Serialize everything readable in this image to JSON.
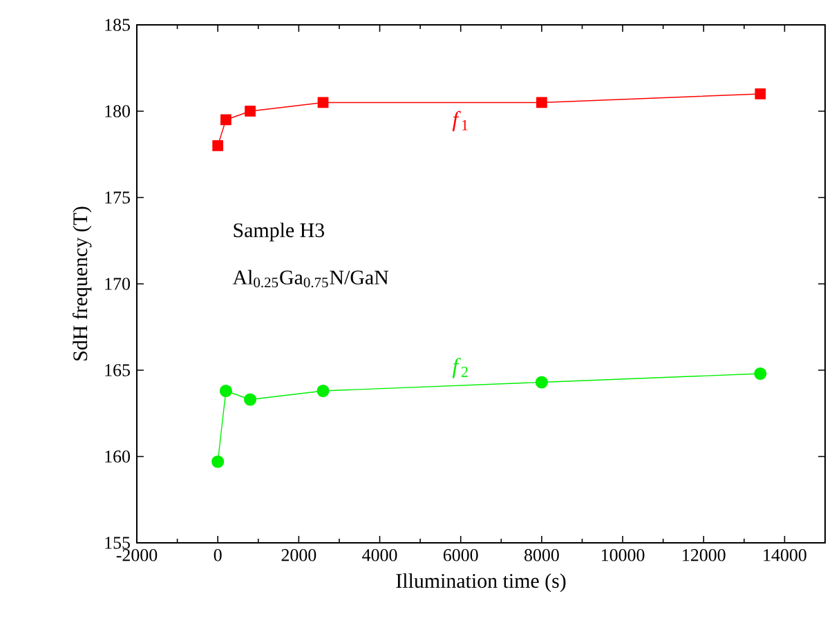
{
  "chart_data": {
    "type": "line",
    "xlabel": "Illumination time (s)",
    "ylabel": "SdH frequency (T)",
    "x": [
      0,
      200,
      800,
      2600,
      8000,
      13400
    ],
    "series": [
      {
        "name": "*f*$_{1}$",
        "color": "#ff0000",
        "marker": "square",
        "values": [
          178.0,
          179.5,
          180.0,
          180.5,
          180.5,
          181.0
        ]
      },
      {
        "name": "*f*$_{2}$",
        "color": "#00ee00",
        "marker": "circle",
        "values": [
          159.7,
          163.8,
          163.3,
          163.8,
          164.3,
          164.8
        ]
      }
    ],
    "annotations": [
      "Sample H3",
      "Al$_{0.25}$Ga$_{0.75}$N/GaN"
    ],
    "xlim": [
      -2000,
      15000
    ],
    "xticks": [
      -2000,
      0,
      2000,
      4000,
      6000,
      8000,
      10000,
      12000,
      14000
    ],
    "ylim": [
      155,
      185
    ],
    "yticks": [
      155,
      160,
      165,
      170,
      175,
      180,
      185
    ],
    "grid": false,
    "legend": false,
    "line_style": "solid"
  }
}
